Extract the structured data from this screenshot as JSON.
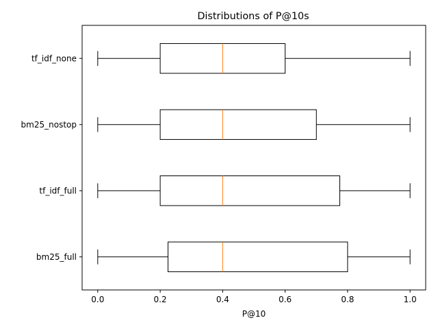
{
  "chart_data": {
    "type": "boxplot",
    "orientation": "horizontal",
    "title": "Distributions of P@10s",
    "xlabel": "P@10",
    "ylabel": "",
    "xlim": [
      -0.05,
      1.05
    ],
    "xticks": [
      0.0,
      0.2,
      0.4,
      0.6,
      0.8,
      1.0
    ],
    "xtick_labels": [
      "0.0",
      "0.2",
      "0.4",
      "0.6",
      "0.8",
      "1.0"
    ],
    "grid": false,
    "categories": [
      "bm25_full",
      "tf_idf_full",
      "bm25_nostop",
      "tf_idf_none"
    ],
    "boxes": [
      {
        "label": "bm25_full",
        "whisker_low": 0.0,
        "q1": 0.225,
        "median": 0.4,
        "q3": 0.8,
        "whisker_high": 1.0
      },
      {
        "label": "tf_idf_full",
        "whisker_low": 0.0,
        "q1": 0.2,
        "median": 0.4,
        "q3": 0.775,
        "whisker_high": 1.0
      },
      {
        "label": "bm25_nostop",
        "whisker_low": 0.0,
        "q1": 0.2,
        "median": 0.4,
        "q3": 0.7,
        "whisker_high": 1.0
      },
      {
        "label": "tf_idf_none",
        "whisker_low": 0.0,
        "q1": 0.2,
        "median": 0.4,
        "q3": 0.6,
        "whisker_high": 1.0
      }
    ],
    "colors": {
      "box": "#000000",
      "median": "#ff7f0e"
    }
  }
}
